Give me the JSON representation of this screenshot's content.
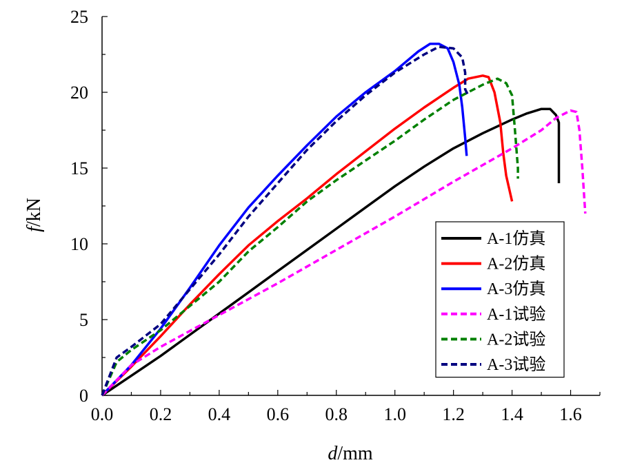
{
  "chart_data": {
    "type": "line",
    "xlabel_italic": "d",
    "xlabel_unit": "/mm",
    "ylabel_italic": "f",
    "ylabel_unit": "/kN",
    "xlim": [
      0.0,
      1.7
    ],
    "ylim": [
      0,
      25
    ],
    "x_ticks": [
      "0.0",
      "0.2",
      "0.4",
      "0.6",
      "0.8",
      "1.0",
      "1.2",
      "1.4",
      "1.6"
    ],
    "y_ticks": [
      "0",
      "5",
      "10",
      "15",
      "20",
      "25"
    ],
    "grid": false,
    "legend_position": "lower-right",
    "series": [
      {
        "name": "A-1仿真",
        "color": "#000000",
        "dashed": false,
        "points": [
          [
            0,
            0
          ],
          [
            0.1,
            1.3
          ],
          [
            0.2,
            2.6
          ],
          [
            0.3,
            4.0
          ],
          [
            0.4,
            5.4
          ],
          [
            0.5,
            6.8
          ],
          [
            0.6,
            8.2
          ],
          [
            0.7,
            9.6
          ],
          [
            0.8,
            11.0
          ],
          [
            0.9,
            12.4
          ],
          [
            1.0,
            13.8
          ],
          [
            1.1,
            15.1
          ],
          [
            1.2,
            16.3
          ],
          [
            1.3,
            17.3
          ],
          [
            1.4,
            18.2
          ],
          [
            1.45,
            18.6
          ],
          [
            1.5,
            18.9
          ],
          [
            1.53,
            18.9
          ],
          [
            1.55,
            18.5
          ],
          [
            1.56,
            18.0
          ],
          [
            1.56,
            16.0
          ],
          [
            1.56,
            14.0
          ]
        ]
      },
      {
        "name": "A-2仿真",
        "color": "#ff0000",
        "dashed": false,
        "points": [
          [
            0,
            0
          ],
          [
            0.1,
            1.9
          ],
          [
            0.2,
            3.9
          ],
          [
            0.3,
            6.0
          ],
          [
            0.4,
            8.0
          ],
          [
            0.5,
            9.9
          ],
          [
            0.6,
            11.5
          ],
          [
            0.7,
            13.0
          ],
          [
            0.8,
            14.6
          ],
          [
            0.9,
            16.1
          ],
          [
            1.0,
            17.6
          ],
          [
            1.1,
            19.0
          ],
          [
            1.2,
            20.3
          ],
          [
            1.25,
            20.9
          ],
          [
            1.3,
            21.1
          ],
          [
            1.32,
            21.0
          ],
          [
            1.34,
            20.0
          ],
          [
            1.36,
            18.0
          ],
          [
            1.37,
            16.0
          ],
          [
            1.38,
            14.5
          ],
          [
            1.4,
            12.8
          ]
        ]
      },
      {
        "name": "A-3仿真",
        "color": "#0000ff",
        "dashed": false,
        "points": [
          [
            0,
            0
          ],
          [
            0.1,
            2.0
          ],
          [
            0.2,
            4.4
          ],
          [
            0.3,
            7.1
          ],
          [
            0.4,
            9.9
          ],
          [
            0.5,
            12.4
          ],
          [
            0.6,
            14.5
          ],
          [
            0.7,
            16.5
          ],
          [
            0.8,
            18.4
          ],
          [
            0.9,
            20.0
          ],
          [
            1.0,
            21.4
          ],
          [
            1.08,
            22.7
          ],
          [
            1.12,
            23.2
          ],
          [
            1.15,
            23.2
          ],
          [
            1.18,
            22.9
          ],
          [
            1.2,
            22.0
          ],
          [
            1.22,
            20.5
          ],
          [
            1.23,
            19.0
          ],
          [
            1.24,
            17.0
          ],
          [
            1.245,
            15.8
          ]
        ]
      },
      {
        "name": "A-1试验",
        "color": "#ff00ff",
        "dashed": true,
        "points": [
          [
            0,
            0
          ],
          [
            0.1,
            2.0
          ],
          [
            0.2,
            3.2
          ],
          [
            0.4,
            5.3
          ],
          [
            0.6,
            7.4
          ],
          [
            0.8,
            9.6
          ],
          [
            1.0,
            11.8
          ],
          [
            1.2,
            14.1
          ],
          [
            1.4,
            16.3
          ],
          [
            1.5,
            17.5
          ],
          [
            1.55,
            18.3
          ],
          [
            1.6,
            18.8
          ],
          [
            1.62,
            18.7
          ],
          [
            1.63,
            17.5
          ],
          [
            1.64,
            15.0
          ],
          [
            1.65,
            12.0
          ]
        ]
      },
      {
        "name": "A-2试验",
        "color": "#008000",
        "dashed": true,
        "points": [
          [
            0,
            0
          ],
          [
            0.05,
            2.2
          ],
          [
            0.1,
            3.0
          ],
          [
            0.2,
            4.3
          ],
          [
            0.3,
            5.9
          ],
          [
            0.4,
            7.5
          ],
          [
            0.5,
            9.5
          ],
          [
            0.6,
            11.1
          ],
          [
            0.7,
            12.8
          ],
          [
            0.8,
            14.2
          ],
          [
            0.9,
            15.5
          ],
          [
            1.0,
            16.8
          ],
          [
            1.1,
            18.2
          ],
          [
            1.2,
            19.5
          ],
          [
            1.3,
            20.5
          ],
          [
            1.35,
            20.9
          ],
          [
            1.38,
            20.6
          ],
          [
            1.4,
            19.8
          ],
          [
            1.41,
            17.5
          ],
          [
            1.42,
            15.0
          ],
          [
            1.42,
            14.3
          ]
        ]
      },
      {
        "name": "A-3试验",
        "color": "#000080",
        "dashed": true,
        "points": [
          [
            0,
            0
          ],
          [
            0.05,
            2.5
          ],
          [
            0.1,
            3.2
          ],
          [
            0.2,
            4.7
          ],
          [
            0.3,
            7.0
          ],
          [
            0.4,
            9.3
          ],
          [
            0.5,
            11.8
          ],
          [
            0.6,
            14.0
          ],
          [
            0.7,
            16.2
          ],
          [
            0.8,
            18.1
          ],
          [
            0.9,
            19.8
          ],
          [
            1.0,
            21.3
          ],
          [
            1.1,
            22.5
          ],
          [
            1.15,
            23.0
          ],
          [
            1.2,
            22.9
          ],
          [
            1.23,
            22.3
          ],
          [
            1.24,
            21.3
          ],
          [
            1.24,
            20.2
          ],
          [
            1.25,
            19.8
          ]
        ]
      }
    ]
  }
}
